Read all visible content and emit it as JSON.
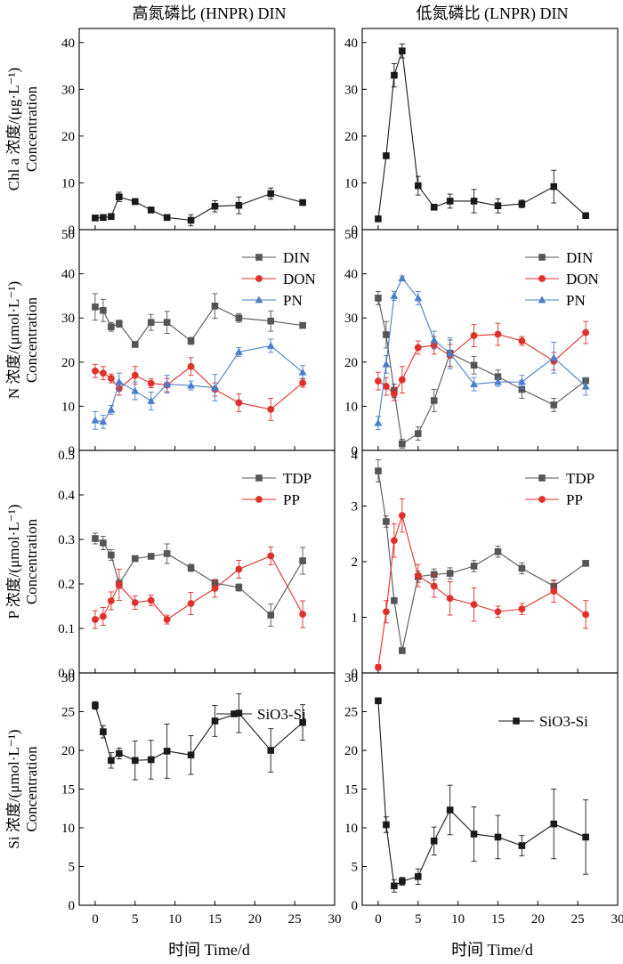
{
  "columns": {
    "left_title": "高氮磷比 (HNPR) DIN",
    "right_title": "低氮磷比 (LNPR) DIN"
  },
  "x_axis": {
    "label": "时间 Time/d",
    "range": [
      -2,
      30
    ],
    "ticks": [
      0,
      5,
      10,
      15,
      20,
      25,
      30
    ]
  },
  "rows": [
    {
      "label_line1": "Chl a 浓度/(μg·L⁻¹)",
      "label_line2": "Concentration"
    },
    {
      "label_line1": "N 浓度/(μmol·L⁻¹)",
      "label_line2": "Concentration"
    },
    {
      "label_line1": "P 浓度/(μmol·L⁻¹)",
      "label_line2": "Concentration"
    },
    {
      "label_line1": "Si 浓度/(μmol·L⁻¹)",
      "label_line2": "Concentration"
    }
  ],
  "colors": {
    "black": "#1a1a1a",
    "gray": "#555555",
    "red": "#e0302a",
    "blue": "#4a7ec8"
  },
  "chart_data": [
    {
      "id": "chl-hnpr",
      "type": "line",
      "row": 0,
      "col": 0,
      "ylim": [
        0,
        43
      ],
      "yticks": [
        0,
        10,
        20,
        30,
        40
      ],
      "legend": false,
      "series": [
        {
          "color": "#1a1a1a",
          "marker": "square",
          "x": [
            0,
            1,
            2,
            3,
            5,
            7,
            9,
            12,
            15,
            18,
            22,
            26
          ],
          "y": [
            2.5,
            2.6,
            2.8,
            7.0,
            6.0,
            4.2,
            2.6,
            2.0,
            5.0,
            5.2,
            7.7,
            5.8
          ],
          "err": [
            0.3,
            0.3,
            0.4,
            1.0,
            0.6,
            0.6,
            0.5,
            1.2,
            1.2,
            1.8,
            1.2,
            0.5
          ]
        }
      ]
    },
    {
      "id": "chl-lnpr",
      "type": "line",
      "row": 0,
      "col": 1,
      "ylim": [
        0,
        43
      ],
      "yticks": [
        0,
        10,
        20,
        30,
        40
      ],
      "legend": false,
      "series": [
        {
          "color": "#1a1a1a",
          "marker": "square",
          "x": [
            0,
            1,
            2,
            3,
            5,
            7,
            9,
            12,
            15,
            18,
            22,
            26
          ],
          "y": [
            2.3,
            15.8,
            33.0,
            38.2,
            9.4,
            4.8,
            6.1,
            6.1,
            5.1,
            5.5,
            9.2,
            3.0
          ],
          "err": [
            0.3,
            0.5,
            2.5,
            1.5,
            2.0,
            0.5,
            1.5,
            2.5,
            1.5,
            0.8,
            3.5,
            0.5
          ]
        }
      ]
    },
    {
      "id": "n-hnpr",
      "type": "line",
      "row": 1,
      "col": 0,
      "ylim": [
        0,
        50
      ],
      "yticks": [
        0,
        10,
        20,
        30,
        40,
        50
      ],
      "legend": true,
      "series": [
        {
          "name": "DIN",
          "color": "#555555",
          "marker": "square",
          "x": [
            0,
            1,
            2,
            3,
            5,
            7,
            9,
            12,
            15,
            18,
            22,
            26
          ],
          "y": [
            32.5,
            31.7,
            28.0,
            28.7,
            24.0,
            29.0,
            29.0,
            24.8,
            32.7,
            30.0,
            29.3,
            28.3
          ],
          "err": [
            3.0,
            2.5,
            1.0,
            0.8,
            0.5,
            1.8,
            2.5,
            0.8,
            2.8,
            1.0,
            2.3,
            0.5
          ]
        },
        {
          "name": "DON",
          "color": "#e0302a",
          "marker": "circle",
          "x": [
            0,
            1,
            2,
            3,
            5,
            7,
            9,
            12,
            15,
            18,
            22,
            26
          ],
          "y": [
            18.0,
            17.5,
            16.3,
            14.0,
            17.0,
            15.2,
            14.8,
            19.0,
            13.8,
            10.8,
            9.3,
            15.3
          ],
          "err": [
            1.5,
            1.5,
            1.0,
            1.5,
            2.0,
            1.0,
            1.5,
            2.0,
            1.5,
            2.0,
            2.5,
            1.0
          ]
        },
        {
          "name": "PN",
          "color": "#4a7ec8",
          "marker": "triangle",
          "x": [
            0,
            1,
            2,
            3,
            5,
            7,
            9,
            12,
            15,
            18,
            22,
            26
          ],
          "y": [
            6.8,
            6.5,
            9.2,
            15.5,
            13.5,
            11.2,
            15.0,
            14.7,
            14.2,
            22.3,
            23.7,
            17.7
          ],
          "err": [
            2.0,
            1.5,
            1.0,
            2.0,
            2.0,
            2.0,
            2.0,
            1.0,
            3.0,
            1.0,
            1.5,
            1.5
          ]
        }
      ]
    },
    {
      "id": "n-lnpr",
      "type": "line",
      "row": 1,
      "col": 1,
      "ylim": [
        0,
        50
      ],
      "yticks": [
        0,
        10,
        20,
        30,
        40,
        50
      ],
      "legend": true,
      "series": [
        {
          "name": "DIN",
          "color": "#555555",
          "marker": "square",
          "x": [
            0,
            1,
            2,
            3,
            5,
            7,
            9,
            12,
            15,
            18,
            22,
            26
          ],
          "y": [
            34.5,
            26.2,
            13.5,
            1.5,
            3.8,
            11.3,
            22.0,
            19.3,
            16.7,
            13.8,
            10.3,
            15.8
          ],
          "err": [
            1.5,
            3.0,
            1.5,
            1.0,
            1.5,
            2.5,
            3.0,
            2.0,
            1.5,
            2.0,
            1.5,
            0.5
          ]
        },
        {
          "name": "DON",
          "color": "#e0302a",
          "marker": "circle",
          "x": [
            0,
            1,
            2,
            3,
            5,
            7,
            9,
            12,
            15,
            18,
            22,
            26
          ],
          "y": [
            15.7,
            14.5,
            12.8,
            16.0,
            23.3,
            23.8,
            21.5,
            26.0,
            26.3,
            24.8,
            20.2,
            26.7
          ],
          "err": [
            2.0,
            2.0,
            1.5,
            3.0,
            1.5,
            2.0,
            2.5,
            2.5,
            2.5,
            1.0,
            2.0,
            2.5
          ]
        },
        {
          "name": "PN",
          "color": "#4a7ec8",
          "marker": "triangle",
          "x": [
            0,
            1,
            2,
            3,
            5,
            7,
            9,
            12,
            15,
            18,
            22,
            26
          ],
          "y": [
            6.2,
            19.5,
            35.0,
            39.0,
            34.5,
            25.0,
            22.0,
            15.0,
            15.5,
            15.5,
            21.0,
            14.5
          ],
          "err": [
            1.5,
            2.0,
            1.0,
            0.5,
            1.5,
            2.0,
            3.5,
            1.5,
            1.0,
            1.5,
            3.5,
            2.0
          ]
        }
      ]
    },
    {
      "id": "p-hnpr",
      "type": "line",
      "row": 2,
      "col": 0,
      "ylim": [
        0,
        0.5
      ],
      "yticks": [
        0.0,
        0.1,
        0.2,
        0.3,
        0.4,
        0.5
      ],
      "ytick_labels": [
        "0.0",
        "0.1",
        "0.2",
        "0.3",
        "0.4",
        "0.5"
      ],
      "legend": true,
      "series": [
        {
          "name": "TDP",
          "color": "#555555",
          "marker": "square",
          "x": [
            0,
            1,
            2,
            3,
            5,
            7,
            9,
            12,
            15,
            18,
            22,
            26
          ],
          "y": [
            0.302,
            0.292,
            0.265,
            0.2,
            0.257,
            0.262,
            0.268,
            0.236,
            0.202,
            0.192,
            0.13,
            0.252
          ],
          "err": [
            0.012,
            0.015,
            0.012,
            0.01,
            0.005,
            0.005,
            0.022,
            0.008,
            0.008,
            0.008,
            0.025,
            0.03
          ]
        },
        {
          "name": "PP",
          "color": "#e0302a",
          "marker": "circle",
          "x": [
            0,
            1,
            2,
            3,
            5,
            7,
            9,
            12,
            15,
            18,
            22,
            26
          ],
          "y": [
            0.12,
            0.127,
            0.162,
            0.198,
            0.158,
            0.163,
            0.12,
            0.156,
            0.19,
            0.233,
            0.263,
            0.132
          ],
          "err": [
            0.02,
            0.02,
            0.02,
            0.035,
            0.015,
            0.012,
            0.01,
            0.025,
            0.02,
            0.02,
            0.02,
            0.03
          ]
        }
      ]
    },
    {
      "id": "p-lnpr",
      "type": "line",
      "row": 2,
      "col": 1,
      "ylim": [
        0,
        4
      ],
      "yticks": [
        0,
        1,
        2,
        3,
        4
      ],
      "legend": true,
      "series": [
        {
          "name": "TDP",
          "color": "#555555",
          "marker": "square",
          "x": [
            0,
            1,
            2,
            3,
            5,
            7,
            9,
            12,
            15,
            18,
            22,
            26
          ],
          "y": [
            3.63,
            2.72,
            1.3,
            0.4,
            1.73,
            1.77,
            1.79,
            1.92,
            2.18,
            1.88,
            1.56,
            1.97
          ],
          "err": [
            0.2,
            0.1,
            0.05,
            0.05,
            0.1,
            0.1,
            0.1,
            0.1,
            0.1,
            0.1,
            0.1,
            0.05
          ]
        },
        {
          "name": "PP",
          "color": "#e0302a",
          "marker": "circle",
          "x": [
            0,
            1,
            2,
            3,
            5,
            7,
            9,
            12,
            15,
            18,
            22,
            26
          ],
          "y": [
            0.1,
            1.1,
            2.38,
            2.83,
            1.75,
            1.56,
            1.34,
            1.23,
            1.1,
            1.15,
            1.47,
            1.05
          ],
          "err": [
            0.05,
            0.2,
            0.3,
            0.3,
            0.2,
            0.2,
            0.3,
            0.3,
            0.1,
            0.1,
            0.2,
            0.25
          ]
        }
      ]
    },
    {
      "id": "si-hnpr",
      "type": "line",
      "row": 3,
      "col": 0,
      "ylim": [
        0,
        30
      ],
      "yticks": [
        0,
        5,
        10,
        15,
        20,
        25,
        30
      ],
      "legend": true,
      "series": [
        {
          "name": "SiO3-Si",
          "color": "#1a1a1a",
          "marker": "square",
          "x": [
            0,
            1,
            2,
            3,
            5,
            7,
            9,
            12,
            15,
            18,
            22,
            26
          ],
          "y": [
            25.8,
            22.4,
            18.7,
            19.6,
            18.7,
            18.8,
            19.9,
            19.4,
            23.8,
            24.8,
            20.0,
            23.6
          ],
          "err": [
            0.5,
            0.8,
            1.0,
            0.7,
            2.5,
            2.5,
            3.5,
            2.5,
            2.0,
            2.5,
            2.8,
            2.3
          ]
        }
      ]
    },
    {
      "id": "si-lnpr",
      "type": "line",
      "row": 3,
      "col": 1,
      "ylim": [
        0,
        30
      ],
      "yticks": [
        0,
        5,
        10,
        15,
        20,
        25,
        30
      ],
      "legend": true,
      "series": [
        {
          "name": "SiO3-Si",
          "color": "#1a1a1a",
          "marker": "square",
          "x": [
            0,
            1,
            2,
            3,
            5,
            7,
            9,
            12,
            15,
            18,
            22,
            26
          ],
          "y": [
            26.4,
            10.4,
            2.5,
            3.1,
            3.7,
            8.3,
            12.3,
            9.2,
            8.8,
            7.7,
            10.5,
            8.8
          ],
          "err": [
            0.3,
            1.0,
            0.8,
            0.5,
            1.0,
            1.8,
            3.2,
            3.5,
            2.8,
            1.3,
            4.5,
            4.8
          ]
        }
      ]
    }
  ]
}
